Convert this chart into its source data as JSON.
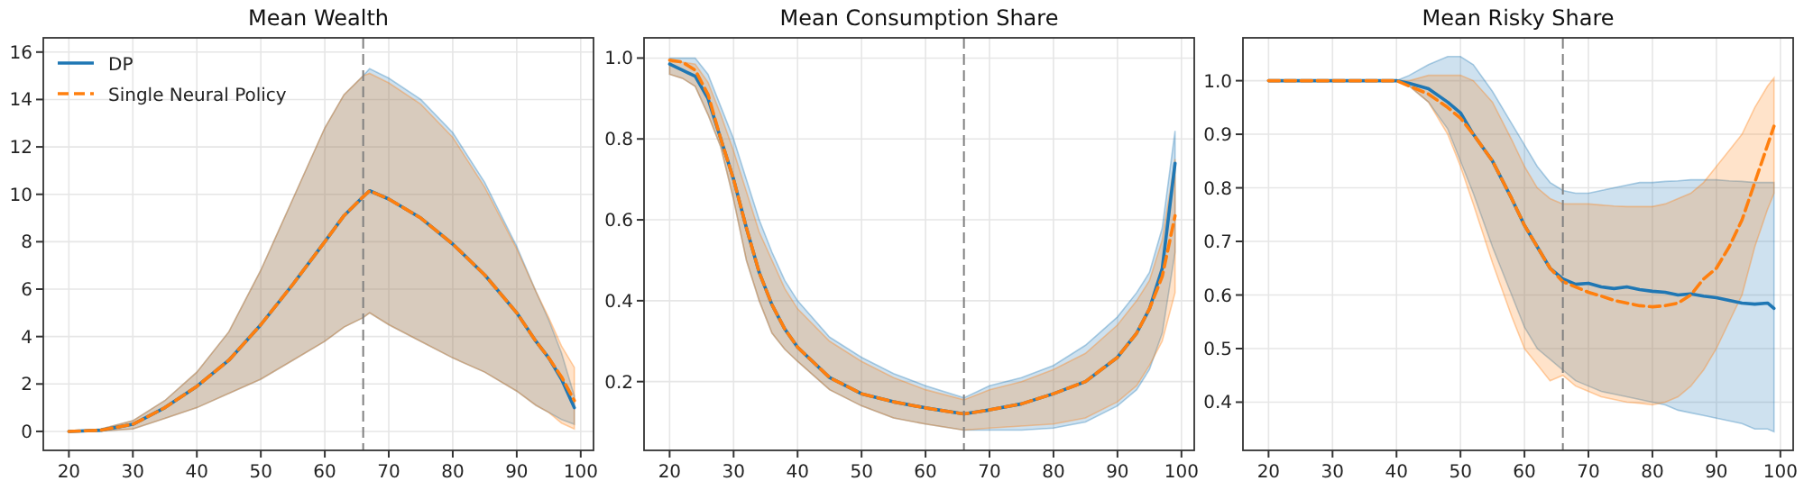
{
  "chart_data": [
    {
      "type": "line",
      "title": "Mean Wealth",
      "xlim": [
        16,
        102
      ],
      "xticks": [
        20,
        30,
        40,
        50,
        60,
        70,
        80,
        90,
        100
      ],
      "ylim": [
        -0.8,
        16.6
      ],
      "yticks": [
        0,
        2,
        4,
        6,
        8,
        10,
        12,
        14,
        16
      ],
      "grid": true,
      "legend": "top left",
      "ref_lines": [
        {
          "axis": "x",
          "value": 66,
          "color": "#808080",
          "line_style": "dashed"
        }
      ],
      "series": [
        {
          "name": "DP",
          "color": "#1f77b4",
          "line_style": "solid",
          "x": [
            20,
            25,
            30,
            35,
            40,
            45,
            50,
            55,
            60,
            63,
            66,
            67,
            70,
            75,
            80,
            85,
            90,
            93,
            95,
            97,
            99
          ],
          "values": [
            0,
            0.05,
            0.3,
            1.0,
            1.9,
            3.0,
            4.5,
            6.2,
            8.0,
            9.1,
            9.9,
            10.15,
            9.8,
            9.0,
            7.9,
            6.6,
            5.0,
            3.8,
            3.1,
            2.2,
            1.0
          ],
          "lower": [
            0,
            0.02,
            0.1,
            0.55,
            1.0,
            1.6,
            2.2,
            3.0,
            3.8,
            4.4,
            4.8,
            5.0,
            4.5,
            3.8,
            3.1,
            2.5,
            1.7,
            1.1,
            0.8,
            0.5,
            0.3
          ],
          "upper": [
            0,
            0.1,
            0.45,
            1.3,
            2.5,
            4.2,
            6.8,
            9.8,
            12.8,
            14.2,
            15.0,
            15.3,
            14.9,
            14.0,
            12.6,
            10.5,
            7.8,
            5.9,
            4.7,
            3.3,
            1.5
          ]
        },
        {
          "name": "Single Neural Policy",
          "color": "#ff7f0e",
          "line_style": "dashed",
          "x": [
            20,
            25,
            30,
            35,
            40,
            45,
            50,
            55,
            60,
            63,
            66,
            67,
            70,
            75,
            80,
            85,
            90,
            93,
            95,
            97,
            99
          ],
          "values": [
            0,
            0.05,
            0.3,
            1.0,
            1.9,
            3.0,
            4.5,
            6.2,
            8.0,
            9.1,
            9.9,
            10.15,
            9.8,
            9.0,
            7.9,
            6.6,
            5.0,
            3.8,
            3.1,
            2.3,
            1.3
          ],
          "lower": [
            0,
            0.02,
            0.1,
            0.55,
            1.0,
            1.6,
            2.2,
            3.0,
            3.8,
            4.4,
            4.8,
            5.0,
            4.5,
            3.8,
            3.1,
            2.5,
            1.7,
            1.1,
            0.8,
            0.35,
            0.1
          ],
          "upper": [
            0,
            0.1,
            0.45,
            1.3,
            2.5,
            4.2,
            6.8,
            9.8,
            12.8,
            14.2,
            15.0,
            15.1,
            14.7,
            13.8,
            12.4,
            10.3,
            7.7,
            5.9,
            4.8,
            3.6,
            2.7
          ]
        }
      ]
    },
    {
      "type": "line",
      "title": "Mean Consumption Share",
      "xlim": [
        16,
        102
      ],
      "xticks": [
        20,
        30,
        40,
        50,
        60,
        70,
        80,
        90,
        100
      ],
      "ylim": [
        0.03,
        1.05
      ],
      "yticks": [
        {
          "value": 0.2,
          "label": "0.2"
        },
        {
          "value": 0.4,
          "label": "0.4"
        },
        {
          "value": 0.6,
          "label": "0.6"
        },
        {
          "value": 0.8,
          "label": "0.8"
        },
        {
          "value": 1.0,
          "label": "1.0"
        }
      ],
      "grid": true,
      "ref_lines": [
        {
          "axis": "x",
          "value": 66,
          "color": "#808080",
          "line_style": "dashed"
        }
      ],
      "series": [
        {
          "color": "#1f77b4",
          "line_style": "solid",
          "x": [
            20,
            22,
            24,
            26,
            28,
            30,
            32,
            34,
            36,
            38,
            40,
            45,
            50,
            55,
            60,
            66,
            70,
            75,
            80,
            85,
            90,
            93,
            95,
            97,
            99
          ],
          "values": [
            0.985,
            0.97,
            0.955,
            0.9,
            0.8,
            0.7,
            0.58,
            0.47,
            0.39,
            0.33,
            0.285,
            0.21,
            0.17,
            0.15,
            0.135,
            0.12,
            0.13,
            0.145,
            0.17,
            0.2,
            0.26,
            0.32,
            0.38,
            0.48,
            0.74
          ],
          "lower": [
            0.96,
            0.95,
            0.93,
            0.86,
            0.78,
            0.65,
            0.5,
            0.4,
            0.32,
            0.28,
            0.25,
            0.18,
            0.14,
            0.11,
            0.095,
            0.08,
            0.08,
            0.08,
            0.085,
            0.1,
            0.14,
            0.18,
            0.23,
            0.32,
            0.52
          ],
          "upper": [
            1.0,
            1.0,
            1.0,
            0.96,
            0.88,
            0.8,
            0.7,
            0.6,
            0.52,
            0.45,
            0.4,
            0.31,
            0.26,
            0.22,
            0.19,
            0.16,
            0.19,
            0.21,
            0.24,
            0.29,
            0.36,
            0.42,
            0.47,
            0.58,
            0.82
          ]
        },
        {
          "color": "#ff7f0e",
          "line_style": "dashed",
          "x": [
            20,
            22,
            24,
            26,
            28,
            30,
            32,
            34,
            36,
            38,
            40,
            45,
            50,
            55,
            60,
            66,
            70,
            75,
            80,
            85,
            90,
            93,
            95,
            97,
            99
          ],
          "values": [
            0.995,
            0.99,
            0.97,
            0.91,
            0.8,
            0.7,
            0.58,
            0.47,
            0.39,
            0.33,
            0.285,
            0.21,
            0.17,
            0.15,
            0.135,
            0.12,
            0.13,
            0.145,
            0.17,
            0.2,
            0.26,
            0.32,
            0.38,
            0.46,
            0.61
          ],
          "lower": [
            0.96,
            0.95,
            0.93,
            0.86,
            0.78,
            0.65,
            0.5,
            0.4,
            0.32,
            0.28,
            0.25,
            0.18,
            0.14,
            0.11,
            0.095,
            0.08,
            0.085,
            0.09,
            0.095,
            0.11,
            0.15,
            0.19,
            0.24,
            0.3,
            0.42
          ],
          "upper": [
            0.99,
            0.99,
            0.985,
            0.94,
            0.86,
            0.77,
            0.67,
            0.57,
            0.5,
            0.43,
            0.38,
            0.3,
            0.25,
            0.21,
            0.18,
            0.155,
            0.18,
            0.2,
            0.23,
            0.27,
            0.34,
            0.4,
            0.45,
            0.55,
            0.75
          ]
        }
      ]
    },
    {
      "type": "line",
      "title": "Mean Risky Share",
      "xlim": [
        16,
        102
      ],
      "xticks": [
        20,
        30,
        40,
        50,
        60,
        70,
        80,
        90,
        100
      ],
      "ylim": [
        0.31,
        1.08
      ],
      "yticks": [
        {
          "value": 0.4,
          "label": "0.4"
        },
        {
          "value": 0.5,
          "label": "0.5"
        },
        {
          "value": 0.6,
          "label": "0.6"
        },
        {
          "value": 0.7,
          "label": "0.7"
        },
        {
          "value": 0.8,
          "label": "0.8"
        },
        {
          "value": 0.9,
          "label": "0.9"
        },
        {
          "value": 1.0,
          "label": "1.0"
        }
      ],
      "grid": true,
      "ref_lines": [
        {
          "axis": "x",
          "value": 66,
          "color": "#808080",
          "line_style": "dashed"
        }
      ],
      "series": [
        {
          "color": "#1f77b4",
          "line_style": "solid",
          "x": [
            20,
            30,
            40,
            42,
            45,
            48,
            50,
            52,
            55,
            58,
            60,
            62,
            64,
            66,
            68,
            70,
            72,
            74,
            76,
            78,
            80,
            82,
            84,
            86,
            88,
            90,
            92,
            94,
            96,
            98,
            99
          ],
          "values": [
            1,
            1,
            1,
            0.995,
            0.985,
            0.96,
            0.94,
            0.9,
            0.85,
            0.78,
            0.73,
            0.69,
            0.65,
            0.63,
            0.62,
            0.622,
            0.615,
            0.612,
            0.615,
            0.61,
            0.607,
            0.605,
            0.6,
            0.602,
            0.598,
            0.595,
            0.59,
            0.585,
            0.583,
            0.585,
            0.575
          ],
          "lower": [
            1,
            1,
            1,
            0.99,
            0.96,
            0.91,
            0.85,
            0.79,
            0.69,
            0.6,
            0.54,
            0.5,
            0.48,
            0.46,
            0.44,
            0.43,
            0.42,
            0.415,
            0.41,
            0.405,
            0.4,
            0.395,
            0.385,
            0.38,
            0.375,
            0.37,
            0.365,
            0.36,
            0.35,
            0.35,
            0.345
          ],
          "upper": [
            1,
            1,
            1,
            1.01,
            1.03,
            1.045,
            1.045,
            1.03,
            0.98,
            0.92,
            0.88,
            0.84,
            0.81,
            0.795,
            0.79,
            0.79,
            0.795,
            0.8,
            0.805,
            0.81,
            0.81,
            0.812,
            0.813,
            0.815,
            0.815,
            0.815,
            0.813,
            0.812,
            0.81,
            0.81,
            0.81
          ]
        },
        {
          "color": "#ff7f0e",
          "line_style": "dashed",
          "x": [
            20,
            30,
            40,
            42,
            45,
            48,
            50,
            52,
            55,
            58,
            60,
            62,
            64,
            66,
            68,
            70,
            72,
            74,
            76,
            78,
            80,
            82,
            84,
            86,
            88,
            90,
            92,
            94,
            96,
            98,
            99
          ],
          "values": [
            1,
            1,
            1,
            0.99,
            0.975,
            0.95,
            0.93,
            0.9,
            0.85,
            0.78,
            0.73,
            0.69,
            0.65,
            0.625,
            0.615,
            0.605,
            0.598,
            0.59,
            0.585,
            0.58,
            0.578,
            0.58,
            0.585,
            0.6,
            0.63,
            0.65,
            0.69,
            0.74,
            0.81,
            0.88,
            0.915
          ],
          "lower": [
            1,
            1,
            1,
            0.99,
            0.96,
            0.9,
            0.84,
            0.77,
            0.66,
            0.56,
            0.5,
            0.47,
            0.44,
            0.45,
            0.43,
            0.42,
            0.41,
            0.405,
            0.4,
            0.398,
            0.395,
            0.4,
            0.41,
            0.43,
            0.46,
            0.5,
            0.55,
            0.6,
            0.69,
            0.76,
            0.79
          ],
          "upper": [
            1,
            1,
            1,
            1.0,
            1.01,
            1.01,
            1.01,
            1.0,
            0.96,
            0.89,
            0.84,
            0.8,
            0.78,
            0.77,
            0.77,
            0.77,
            0.768,
            0.766,
            0.765,
            0.765,
            0.765,
            0.77,
            0.78,
            0.79,
            0.81,
            0.84,
            0.87,
            0.9,
            0.95,
            0.99,
            1.005
          ]
        }
      ]
    }
  ]
}
